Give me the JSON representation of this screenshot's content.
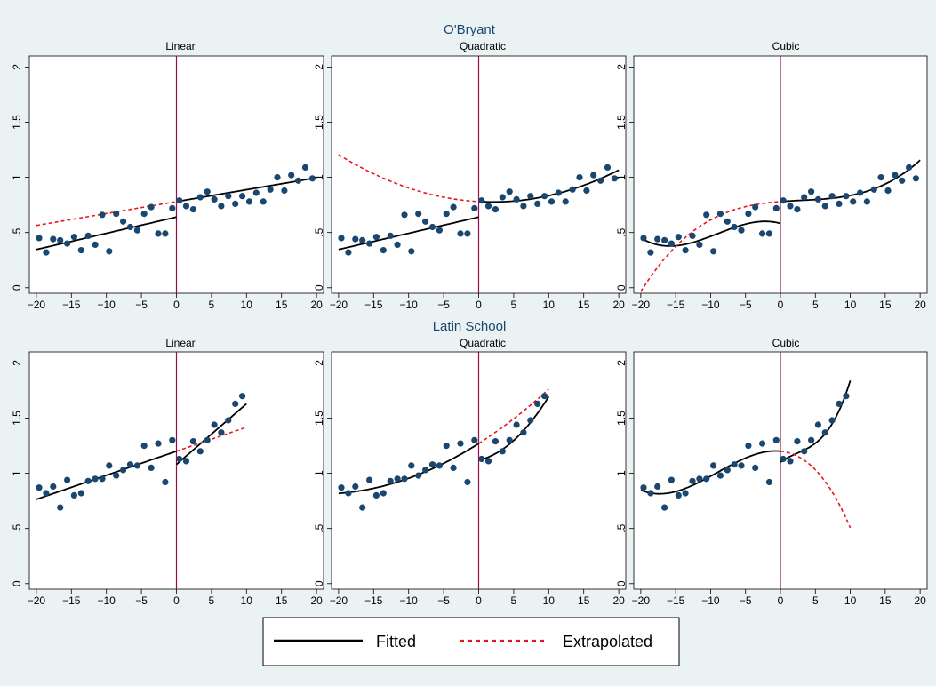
{
  "figure": {
    "background": "#eaf2f3",
    "plot_background": "#ffffff",
    "marker_color": "#1a476f",
    "fitted_color": "#000000",
    "extrapolated_color": "#e8171f",
    "cutoff_color": "#990c4a"
  },
  "legend": {
    "items": [
      {
        "label": "Fitted",
        "style": "solid-black"
      },
      {
        "label": "Extrapolated",
        "style": "dashed-red"
      }
    ]
  },
  "chart_data": [
    {
      "type": "scatter",
      "group_title": "O'Bryant",
      "title": "Linear",
      "xlim": [
        -21,
        21
      ],
      "ylim": [
        -0.05,
        2.1
      ],
      "xticks": [
        -20,
        -15,
        -10,
        -5,
        0,
        5,
        10,
        15,
        20
      ],
      "yticks": [
        0,
        0.5,
        1,
        1.5,
        2
      ],
      "ytick_labels": [
        "0",
        ".5",
        "1",
        "1.5",
        "2"
      ],
      "cutoff": 0,
      "points": [
        [
          -19.6,
          0.45
        ],
        [
          -18.6,
          0.32
        ],
        [
          -17.6,
          0.44
        ],
        [
          -16.6,
          0.43
        ],
        [
          -15.6,
          0.4
        ],
        [
          -14.6,
          0.46
        ],
        [
          -13.6,
          0.34
        ],
        [
          -12.6,
          0.47
        ],
        [
          -11.6,
          0.39
        ],
        [
          -10.6,
          0.66
        ],
        [
          -9.6,
          0.33
        ],
        [
          -8.6,
          0.67
        ],
        [
          -7.6,
          0.6
        ],
        [
          -6.6,
          0.55
        ],
        [
          -5.6,
          0.52
        ],
        [
          -4.6,
          0.67
        ],
        [
          -3.6,
          0.73
        ],
        [
          -2.6,
          0.49
        ],
        [
          -1.6,
          0.49
        ],
        [
          -0.6,
          0.72
        ],
        [
          0.4,
          0.79
        ],
        [
          1.4,
          0.74
        ],
        [
          2.4,
          0.71
        ],
        [
          3.4,
          0.82
        ],
        [
          4.4,
          0.87
        ],
        [
          5.4,
          0.8
        ],
        [
          6.4,
          0.74
        ],
        [
          7.4,
          0.83
        ],
        [
          8.4,
          0.76
        ],
        [
          9.4,
          0.83
        ],
        [
          10.4,
          0.78
        ],
        [
          11.4,
          0.86
        ],
        [
          12.4,
          0.78
        ],
        [
          13.4,
          0.89
        ],
        [
          14.4,
          1.0
        ],
        [
          15.4,
          0.88
        ],
        [
          16.4,
          1.02
        ],
        [
          17.4,
          0.97
        ],
        [
          18.4,
          1.09
        ],
        [
          19.4,
          0.99
        ]
      ],
      "fitted_left": {
        "xrange": [
          -20,
          0
        ],
        "coef": [
          0.64,
          0.0147
        ]
      },
      "fitted_right": {
        "xrange": [
          0,
          20
        ],
        "coef": [
          0.78,
          0.0108
        ]
      },
      "extrapolated": {
        "xrange": [
          -20,
          0
        ],
        "coef": [
          0.78,
          0.0108
        ]
      }
    },
    {
      "type": "scatter",
      "title": "Quadratic",
      "xlim": [
        -21,
        21
      ],
      "ylim": [
        -0.05,
        2.1
      ],
      "xticks": [
        -20,
        -15,
        -10,
        -5,
        0,
        5,
        10,
        15,
        20
      ],
      "yticks": [
        0,
        0.5,
        1,
        1.5,
        2
      ],
      "ytick_labels": [
        "0",
        ".5",
        "1",
        "1.5",
        "2"
      ],
      "cutoff": 0,
      "points": [
        [
          -19.6,
          0.45
        ],
        [
          -18.6,
          0.32
        ],
        [
          -17.6,
          0.44
        ],
        [
          -16.6,
          0.43
        ],
        [
          -15.6,
          0.4
        ],
        [
          -14.6,
          0.46
        ],
        [
          -13.6,
          0.34
        ],
        [
          -12.6,
          0.47
        ],
        [
          -11.6,
          0.39
        ],
        [
          -10.6,
          0.66
        ],
        [
          -9.6,
          0.33
        ],
        [
          -8.6,
          0.67
        ],
        [
          -7.6,
          0.6
        ],
        [
          -6.6,
          0.55
        ],
        [
          -5.6,
          0.52
        ],
        [
          -4.6,
          0.67
        ],
        [
          -3.6,
          0.73
        ],
        [
          -2.6,
          0.49
        ],
        [
          -1.6,
          0.49
        ],
        [
          -0.6,
          0.72
        ],
        [
          0.4,
          0.79
        ],
        [
          1.4,
          0.74
        ],
        [
          2.4,
          0.71
        ],
        [
          3.4,
          0.82
        ],
        [
          4.4,
          0.87
        ],
        [
          5.4,
          0.8
        ],
        [
          6.4,
          0.74
        ],
        [
          7.4,
          0.83
        ],
        [
          8.4,
          0.76
        ],
        [
          9.4,
          0.83
        ],
        [
          10.4,
          0.78
        ],
        [
          11.4,
          0.86
        ],
        [
          12.4,
          0.78
        ],
        [
          13.4,
          0.89
        ],
        [
          14.4,
          1.0
        ],
        [
          15.4,
          0.88
        ],
        [
          16.4,
          1.02
        ],
        [
          17.4,
          0.97
        ],
        [
          18.4,
          1.09
        ],
        [
          19.4,
          0.99
        ]
      ],
      "fitted_left": {
        "xrange": [
          -20,
          0
        ],
        "coef": [
          0.64,
          0.0147,
          0
        ]
      },
      "fitted_right": {
        "xrange": [
          0,
          20
        ],
        "coef": [
          0.78,
          -0.0035,
          0.00089
        ]
      },
      "extrapolated": {
        "xrange": [
          -20,
          0
        ],
        "coef": [
          0.78,
          -0.0035,
          0.00089
        ]
      }
    },
    {
      "type": "scatter",
      "title": "Cubic",
      "xlim": [
        -21,
        21
      ],
      "ylim": [
        -0.05,
        2.1
      ],
      "xticks": [
        -20,
        -15,
        -10,
        -5,
        0,
        5,
        10,
        15,
        20
      ],
      "yticks": [
        0,
        0.5,
        1,
        1.5,
        2
      ],
      "ytick_labels": [
        "0",
        ".5",
        "1",
        "1.5",
        "2"
      ],
      "cutoff": 0,
      "points": [
        [
          -19.6,
          0.45
        ],
        [
          -18.6,
          0.32
        ],
        [
          -17.6,
          0.44
        ],
        [
          -16.6,
          0.43
        ],
        [
          -15.6,
          0.4
        ],
        [
          -14.6,
          0.46
        ],
        [
          -13.6,
          0.34
        ],
        [
          -12.6,
          0.47
        ],
        [
          -11.6,
          0.39
        ],
        [
          -10.6,
          0.66
        ],
        [
          -9.6,
          0.33
        ],
        [
          -8.6,
          0.67
        ],
        [
          -7.6,
          0.6
        ],
        [
          -6.6,
          0.55
        ],
        [
          -5.6,
          0.52
        ],
        [
          -4.6,
          0.67
        ],
        [
          -3.6,
          0.73
        ],
        [
          -2.6,
          0.49
        ],
        [
          -1.6,
          0.49
        ],
        [
          -0.6,
          0.72
        ],
        [
          0.4,
          0.79
        ],
        [
          1.4,
          0.74
        ],
        [
          2.4,
          0.71
        ],
        [
          3.4,
          0.82
        ],
        [
          4.4,
          0.87
        ],
        [
          5.4,
          0.8
        ],
        [
          6.4,
          0.74
        ],
        [
          7.4,
          0.83
        ],
        [
          8.4,
          0.76
        ],
        [
          9.4,
          0.83
        ],
        [
          10.4,
          0.78
        ],
        [
          11.4,
          0.86
        ],
        [
          12.4,
          0.78
        ],
        [
          13.4,
          0.89
        ],
        [
          14.4,
          1.0
        ],
        [
          15.4,
          0.88
        ],
        [
          16.4,
          1.02
        ],
        [
          17.4,
          0.97
        ],
        [
          18.4,
          1.09
        ],
        [
          19.4,
          0.99
        ]
      ],
      "fitted_left": {
        "xrange": [
          -20,
          0
        ],
        "coef": [
          0.582,
          -0.0181,
          -0.00473,
          -0.000175
        ]
      },
      "fitted_right": {
        "xrange": [
          0,
          20
        ],
        "coef": [
          0.78,
          0.0048,
          -0.00055,
          6.25e-05
        ]
      },
      "extrapolated": {
        "xrange": [
          -20,
          0
        ],
        "coef": [
          0.78,
          0.0048,
          -0.00055,
          6.25e-05
        ]
      }
    },
    {
      "type": "scatter",
      "group_title": "Latin School",
      "title": "Linear",
      "xlim": [
        -21,
        21
      ],
      "ylim": [
        -0.05,
        2.1
      ],
      "xticks": [
        -20,
        -15,
        -10,
        -5,
        0,
        5,
        10,
        15,
        20
      ],
      "yticks": [
        0,
        0.5,
        1,
        1.5,
        2
      ],
      "ytick_labels": [
        "0",
        ".5",
        "1",
        "1.5",
        "2"
      ],
      "cutoff": 0,
      "points": [
        [
          -19.6,
          0.87
        ],
        [
          -18.6,
          0.82
        ],
        [
          -17.6,
          0.88
        ],
        [
          -16.6,
          0.69
        ],
        [
          -15.6,
          0.94
        ],
        [
          -14.6,
          0.8
        ],
        [
          -13.6,
          0.82
        ],
        [
          -12.6,
          0.93
        ],
        [
          -11.6,
          0.95
        ],
        [
          -10.6,
          0.95
        ],
        [
          -9.6,
          1.07
        ],
        [
          -8.6,
          0.98
        ],
        [
          -7.6,
          1.03
        ],
        [
          -6.6,
          1.08
        ],
        [
          -5.6,
          1.07
        ],
        [
          -4.6,
          1.25
        ],
        [
          -3.6,
          1.05
        ],
        [
          -2.6,
          1.27
        ],
        [
          -1.6,
          0.92
        ],
        [
          -0.6,
          1.3
        ],
        [
          0.4,
          1.13
        ],
        [
          1.4,
          1.11
        ],
        [
          2.4,
          1.29
        ],
        [
          3.4,
          1.2
        ],
        [
          4.4,
          1.3
        ],
        [
          5.4,
          1.44
        ],
        [
          6.4,
          1.37
        ],
        [
          7.4,
          1.48
        ],
        [
          8.4,
          1.63
        ],
        [
          9.4,
          1.7
        ]
      ],
      "fitted_left": {
        "xrange": [
          -20,
          0
        ],
        "coef": [
          1.2,
          0.0218
        ]
      },
      "fitted_right": {
        "xrange": [
          0,
          10
        ],
        "coef": [
          1.08,
          0.055
        ]
      },
      "extrapolated": {
        "xrange": [
          0,
          10
        ],
        "coef": [
          1.2,
          0.0218
        ]
      }
    },
    {
      "type": "scatter",
      "title": "Quadratic",
      "xlim": [
        -21,
        21
      ],
      "ylim": [
        -0.05,
        2.1
      ],
      "xticks": [
        -20,
        -15,
        -10,
        -5,
        0,
        5,
        10,
        15,
        20
      ],
      "yticks": [
        0,
        0.5,
        1,
        1.5,
        2
      ],
      "ytick_labels": [
        "0",
        ".5",
        "1",
        "1.5",
        "2"
      ],
      "cutoff": 0,
      "points": [
        [
          -19.6,
          0.87
        ],
        [
          -18.6,
          0.82
        ],
        [
          -17.6,
          0.88
        ],
        [
          -16.6,
          0.69
        ],
        [
          -15.6,
          0.94
        ],
        [
          -14.6,
          0.8
        ],
        [
          -13.6,
          0.82
        ],
        [
          -12.6,
          0.93
        ],
        [
          -11.6,
          0.95
        ],
        [
          -10.6,
          0.95
        ],
        [
          -9.6,
          1.07
        ],
        [
          -8.6,
          0.98
        ],
        [
          -7.6,
          1.03
        ],
        [
          -6.6,
          1.08
        ],
        [
          -5.6,
          1.07
        ],
        [
          -4.6,
          1.25
        ],
        [
          -3.6,
          1.05
        ],
        [
          -2.6,
          1.27
        ],
        [
          -1.6,
          0.92
        ],
        [
          -0.6,
          1.3
        ],
        [
          0.4,
          1.13
        ],
        [
          1.4,
          1.11
        ],
        [
          2.4,
          1.29
        ],
        [
          3.4,
          1.2
        ],
        [
          4.4,
          1.3
        ],
        [
          5.4,
          1.44
        ],
        [
          6.4,
          1.37
        ],
        [
          7.4,
          1.48
        ],
        [
          8.4,
          1.63
        ],
        [
          9.4,
          1.7
        ]
      ],
      "fitted_left": {
        "xrange": [
          -20,
          0
        ],
        "coef": [
          1.27,
          0.0404,
          0.00089
        ]
      },
      "fitted_right": {
        "xrange": [
          0,
          10
        ],
        "coef": [
          1.12,
          0.0135,
          0.0044
        ]
      },
      "extrapolated": {
        "xrange": [
          0,
          10
        ],
        "coef": [
          1.27,
          0.0404,
          0.00089
        ]
      }
    },
    {
      "type": "scatter",
      "title": "Cubic",
      "xlim": [
        -21,
        21
      ],
      "ylim": [
        -0.05,
        2.1
      ],
      "xticks": [
        -20,
        -15,
        -10,
        -5,
        0,
        5,
        10,
        15,
        20
      ],
      "yticks": [
        0,
        0.5,
        1,
        1.5,
        2
      ],
      "ytick_labels": [
        "0",
        ".5",
        "1",
        "1.5",
        "2"
      ],
      "cutoff": 0,
      "points": [
        [
          -19.6,
          0.87
        ],
        [
          -18.6,
          0.82
        ],
        [
          -17.6,
          0.88
        ],
        [
          -16.6,
          0.69
        ],
        [
          -15.6,
          0.94
        ],
        [
          -14.6,
          0.8
        ],
        [
          -13.6,
          0.82
        ],
        [
          -12.6,
          0.93
        ],
        [
          -11.6,
          0.95
        ],
        [
          -10.6,
          0.95
        ],
        [
          -9.6,
          1.07
        ],
        [
          -8.6,
          0.98
        ],
        [
          -7.6,
          1.03
        ],
        [
          -6.6,
          1.08
        ],
        [
          -5.6,
          1.07
        ],
        [
          -4.6,
          1.25
        ],
        [
          -3.6,
          1.05
        ],
        [
          -2.6,
          1.27
        ],
        [
          -1.6,
          0.92
        ],
        [
          -0.6,
          1.3
        ],
        [
          0.4,
          1.13
        ],
        [
          1.4,
          1.11
        ],
        [
          2.4,
          1.29
        ],
        [
          3.4,
          1.2
        ],
        [
          4.4,
          1.3
        ],
        [
          5.4,
          1.44
        ],
        [
          6.4,
          1.37
        ],
        [
          7.4,
          1.48
        ],
        [
          8.4,
          1.63
        ],
        [
          9.4,
          1.7
        ]
      ],
      "fitted_left": {
        "xrange": [
          -20,
          0
        ],
        "coef": [
          1.2,
          -0.0064,
          -0.0046,
          -0.00017
        ]
      },
      "fitted_right": {
        "xrange": [
          0,
          10
        ],
        "coef": [
          1.1,
          0.046,
          -0.0074,
          0.00102
        ]
      },
      "extrapolated": {
        "xrange": [
          0,
          10
        ],
        "coef": [
          1.2,
          -0.0064,
          -0.0046,
          -0.00017
        ]
      }
    }
  ]
}
